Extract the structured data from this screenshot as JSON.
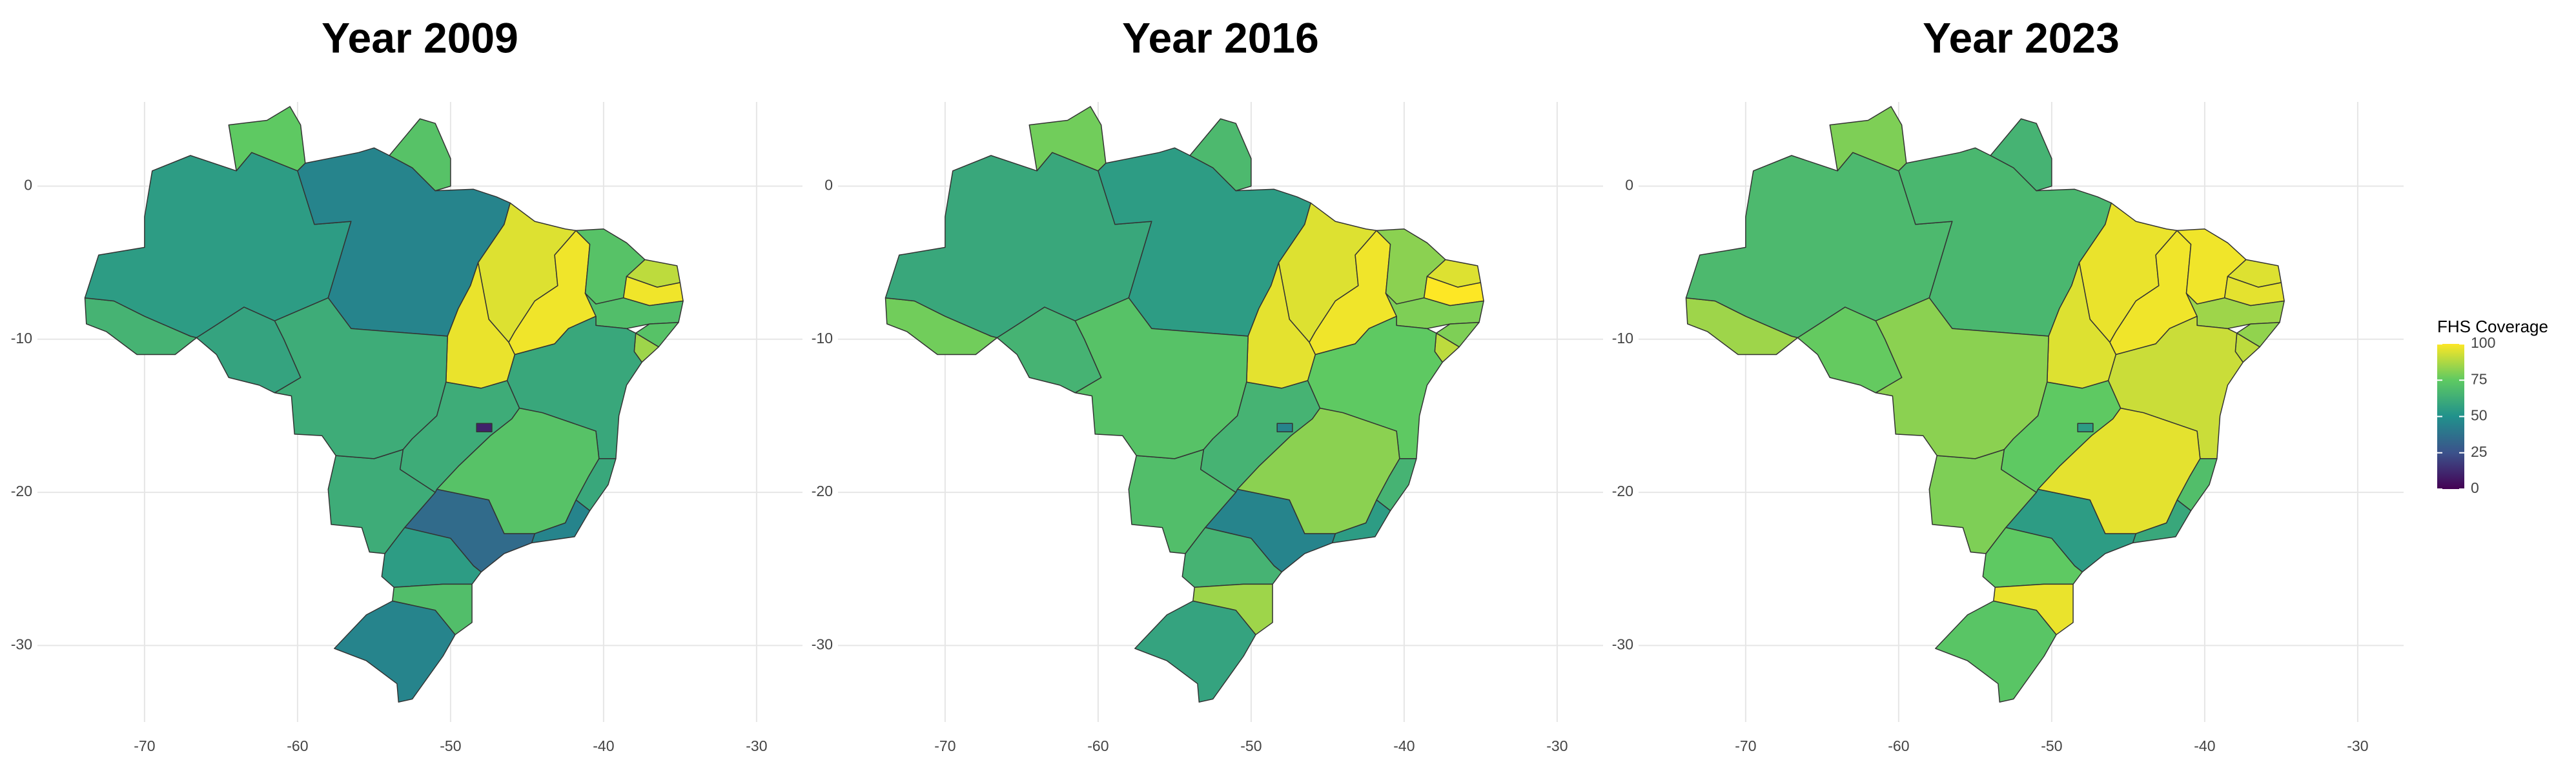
{
  "chart_data": [
    {
      "type": "choropleth",
      "title": "Year 2009",
      "values": [
        65,
        55,
        75,
        45,
        72,
        95,
        97,
        98,
        72,
        90,
        98,
        70,
        72,
        85,
        60,
        72,
        60,
        45,
        35,
        55,
        70,
        45,
        62,
        62,
        62,
        10,
        58
      ],
      "xlim": [
        -77,
        -27
      ],
      "ylim": [
        -35,
        5.5
      ],
      "xticks": [
        -70,
        -60,
        -50,
        -40,
        -30
      ],
      "yticks": [
        0,
        -10,
        -20,
        -30
      ],
      "grid": true
    },
    {
      "type": "choropleth",
      "title": "Year 2016",
      "values": [
        78,
        60,
        78,
        55,
        68,
        95,
        96,
        98,
        82,
        95,
        100,
        80,
        80,
        90,
        75,
        82,
        65,
        55,
        45,
        65,
        85,
        58,
        70,
        72,
        65,
        45,
        65
      ],
      "xlim": [
        -77,
        -27
      ],
      "ylim": [
        -35,
        5.5
      ],
      "xticks": [
        -70,
        -60,
        -50,
        -40,
        -30
      ],
      "yticks": [
        0,
        -10,
        -20,
        -30
      ],
      "grid": true
    },
    {
      "type": "choropleth",
      "title": "Year 2023",
      "values": [
        85,
        68,
        80,
        67,
        65,
        97,
        95,
        98,
        98,
        95,
        96,
        85,
        83,
        90,
        92,
        96,
        70,
        60,
        55,
        75,
        97,
        73,
        80,
        82,
        75,
        55,
        76
      ],
      "xlim": [
        -77,
        -27
      ],
      "ylim": [
        -35,
        5.5
      ],
      "xticks": [
        -70,
        -60,
        -50,
        -40,
        -30
      ],
      "yticks": [
        0,
        -10,
        -20,
        -30
      ],
      "grid": true
    }
  ],
  "legend": {
    "title": "FHS Coverage",
    "range": [
      0,
      100
    ],
    "ticks": [
      0,
      25,
      50,
      75,
      100
    ],
    "colorscale": [
      "#440154",
      "#3b528b",
      "#21918c",
      "#5ec962",
      "#fde725"
    ]
  }
}
